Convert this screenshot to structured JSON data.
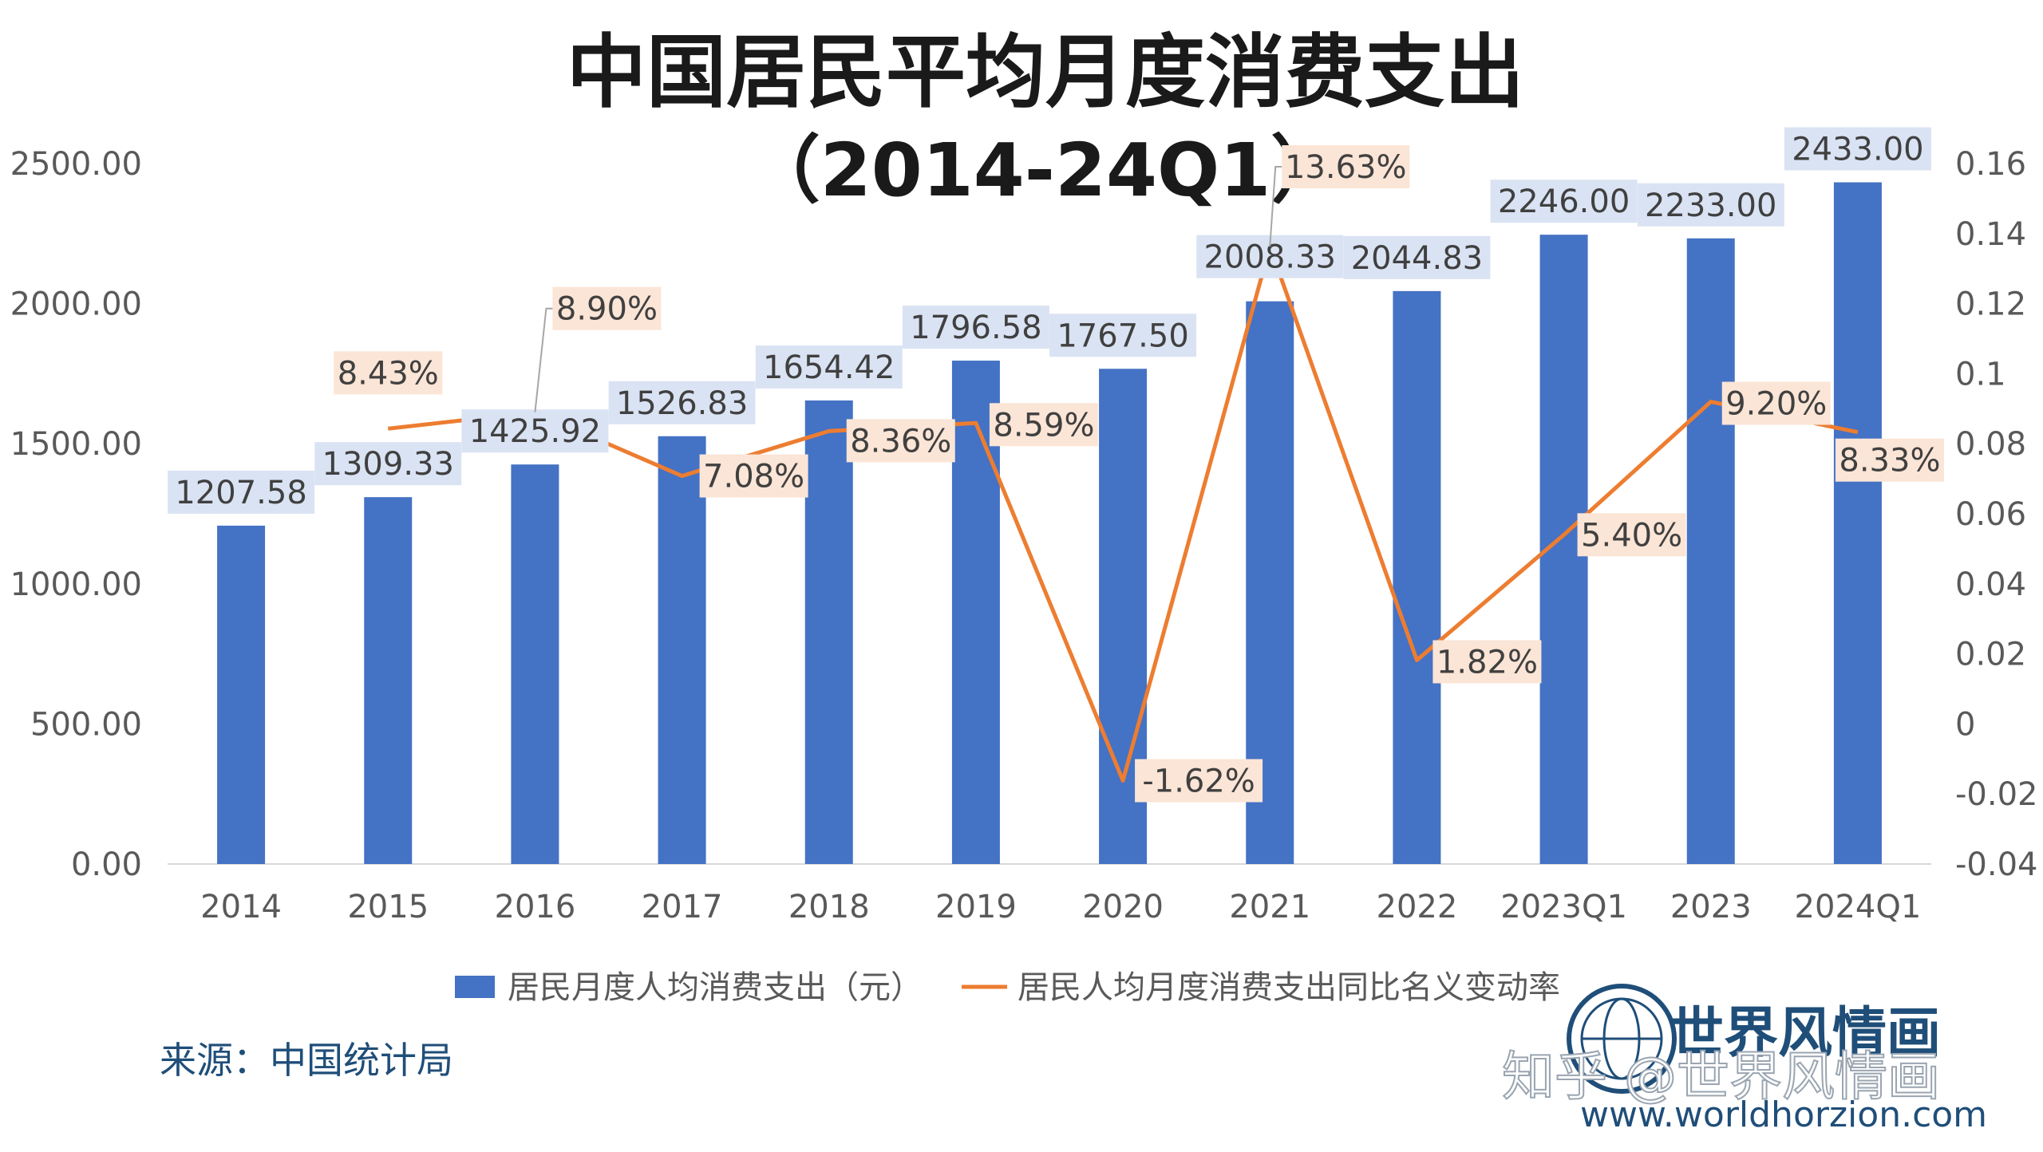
{
  "chart_data": {
    "type": "bar",
    "title": "中国居民平均月度消费支出",
    "subtitle": "（2014-24Q1）",
    "categories": [
      "2014",
      "2015",
      "2016",
      "2017",
      "2018",
      "2019",
      "2020",
      "2021",
      "2022",
      "2023Q1",
      "2023",
      "2024Q1"
    ],
    "series": [
      {
        "name": "居民月度人均消费支出（元）",
        "type": "bar",
        "axis": "left",
        "color": "#4472c4",
        "values": [
          1207.58,
          1309.33,
          1425.92,
          1526.83,
          1654.42,
          1796.58,
          1767.5,
          2008.33,
          2044.83,
          2246.0,
          2233.0,
          2433.0
        ],
        "labels": [
          "1207.58",
          "1309.33",
          "1425.92",
          "1526.83",
          "1654.42",
          "1796.58",
          "1767.50",
          "2008.33",
          "2044.83",
          "2246.00",
          "2233.00",
          "2433.00"
        ]
      },
      {
        "name": "居民人均月度消费支出同比名义变动率",
        "type": "line",
        "axis": "right",
        "color": "#ed7d31",
        "values": [
          null,
          0.0843,
          0.089,
          0.0708,
          0.0836,
          0.0859,
          -0.0162,
          0.1363,
          0.0182,
          0.054,
          0.092,
          0.0833
        ],
        "labels": [
          "",
          "8.43%",
          "8.90%",
          "7.08%",
          "8.36%",
          "8.59%",
          "-1.62%",
          "13.63%",
          "1.82%",
          "5.40%",
          "9.20%",
          "8.33%"
        ]
      }
    ],
    "y_left": {
      "range": [
        0,
        2500
      ],
      "ticks": [
        "0.00",
        "500.00",
        "1000.00",
        "1500.00",
        "2000.00",
        "2500.00"
      ]
    },
    "y_right": {
      "range": [
        -0.04,
        0.16
      ],
      "ticks": [
        "-0.04",
        "-0.02",
        "0",
        "0.02",
        "0.04",
        "0.06",
        "0.08",
        "0.1",
        "0.12",
        "0.14",
        "0.16"
      ]
    },
    "xlabel": "",
    "ylabel": "",
    "grid": false,
    "legend_position": "bottom"
  },
  "source": "来源：中国统计局",
  "watermark": {
    "brand": "世界风情画",
    "platform": "知乎 @世界风情画",
    "url": "www.worldhorzion.com",
    "logo_icon": "globe-seal-icon"
  }
}
